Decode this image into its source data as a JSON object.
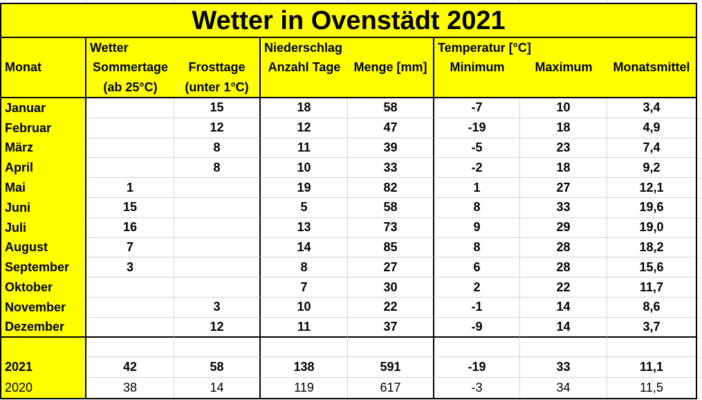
{
  "title": "Wetter in Ovenstädt 2021",
  "colors": {
    "highlight": "#ffff00",
    "gridline": "#d4d4d4",
    "border": "#000000",
    "cell_background": "#ffffff"
  },
  "header": {
    "group_wetter": "Wetter",
    "group_niederschlag": "Niederschlag",
    "group_temperatur": "Temperatur [°C]",
    "col_monat": "Monat",
    "col_sommertage": "Sommertage",
    "col_frosttage": "Frosttage",
    "col_anzahl_tage": "Anzahl Tage",
    "col_menge": "Menge [mm]",
    "col_minimum": "Minimum",
    "col_maximum": "Maximum",
    "col_monatsmittel": "Monatsmittel",
    "sub_sommertage": "(ab 25°C)",
    "sub_frosttage": "(unter 1°C)"
  },
  "column_keys": [
    "sommertage",
    "frosttage",
    "anzahl-tage",
    "menge",
    "minimum",
    "maximum",
    "monatsmittel"
  ],
  "rows": [
    {
      "label": "Januar",
      "values": [
        "",
        "15",
        "18",
        "58",
        "-7",
        "10",
        "3,4"
      ],
      "style": ""
    },
    {
      "label": "Februar",
      "values": [
        "",
        "12",
        "12",
        "47",
        "-19",
        "18",
        "4,9"
      ],
      "style": ""
    },
    {
      "label": "März",
      "values": [
        "",
        "8",
        "11",
        "39",
        "-5",
        "23",
        "7,4"
      ],
      "style": ""
    },
    {
      "label": "April",
      "values": [
        "",
        "8",
        "10",
        "33",
        "-2",
        "18",
        "9,2"
      ],
      "style": ""
    },
    {
      "label": "Mai",
      "values": [
        "1",
        "",
        "19",
        "82",
        "1",
        "27",
        "12,1"
      ],
      "style": ""
    },
    {
      "label": "Juni",
      "values": [
        "15",
        "",
        "5",
        "58",
        "8",
        "33",
        "19,6"
      ],
      "style": ""
    },
    {
      "label": "Juli",
      "values": [
        "16",
        "",
        "13",
        "73",
        "9",
        "29",
        "19,0"
      ],
      "style": ""
    },
    {
      "label": "August",
      "values": [
        "7",
        "",
        "14",
        "85",
        "8",
        "28",
        "18,2"
      ],
      "style": ""
    },
    {
      "label": "September",
      "values": [
        "3",
        "",
        "8",
        "27",
        "6",
        "28",
        "15,6"
      ],
      "style": ""
    },
    {
      "label": "Oktober",
      "values": [
        "",
        "",
        "7",
        "30",
        "2",
        "22",
        "11,7"
      ],
      "style": ""
    },
    {
      "label": "November",
      "values": [
        "",
        "3",
        "10",
        "22",
        "-1",
        "14",
        "8,6"
      ],
      "style": ""
    },
    {
      "label": "Dezember",
      "values": [
        "",
        "12",
        "11",
        "37",
        "-9",
        "14",
        "3,7"
      ],
      "style": "r-dez"
    },
    {
      "label": "",
      "values": [
        "",
        "",
        "",
        "",
        "",
        "",
        ""
      ],
      "style": "r-spacer"
    },
    {
      "label": "2021",
      "values": [
        "42",
        "58",
        "138",
        "591",
        "-19",
        "33",
        "11,1"
      ],
      "style": "r-total"
    },
    {
      "label": "2020",
      "values": [
        "38",
        "14",
        "119",
        "617",
        "-3",
        "34",
        "11,5"
      ],
      "style": "r-prev r-last"
    }
  ]
}
